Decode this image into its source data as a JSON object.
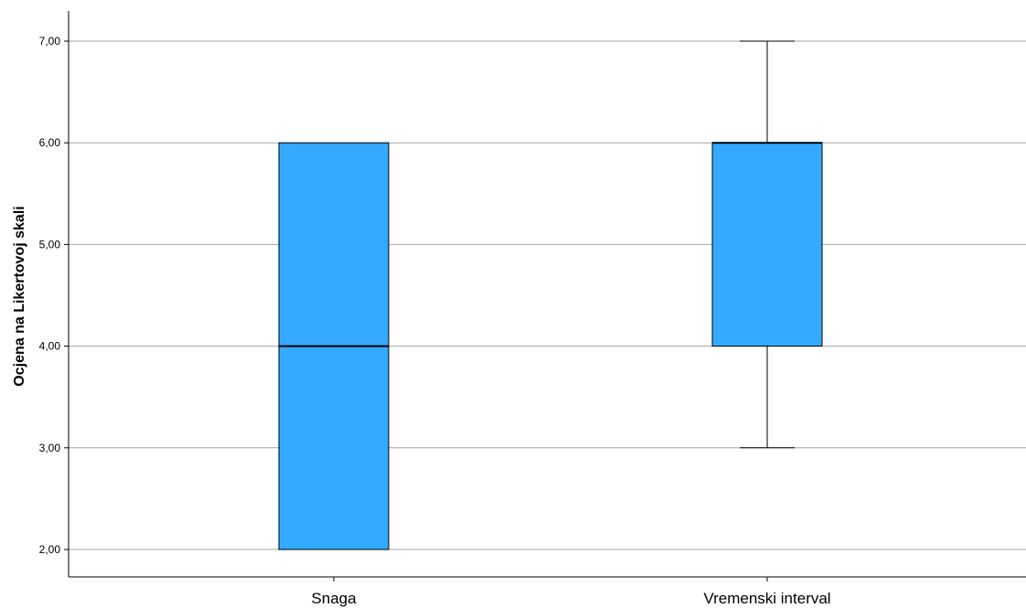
{
  "chart_data": {
    "type": "boxplot",
    "ylabel": "Ocjena na Likertovoj skali",
    "xlabel": "",
    "ylim": [
      1.75,
      7.3
    ],
    "yticks": [
      "2,00",
      "3,00",
      "4,00",
      "5,00",
      "6,00",
      "7,00"
    ],
    "ytick_values": [
      2,
      3,
      4,
      5,
      6,
      7
    ],
    "grid": true,
    "categories": [
      "Snaga",
      "Vremenski interval"
    ],
    "boxes": [
      {
        "category": "Snaga",
        "min": 2,
        "q1": 2,
        "median": 4,
        "q3": 6,
        "max": 6
      },
      {
        "category": "Vremenski interval",
        "min": 3,
        "q1": 4,
        "median": 6,
        "q3": 6,
        "max": 7
      }
    ],
    "colors": {
      "box_fill": "#33aaff",
      "box_stroke": "#000000",
      "grid": "#a6a6a6",
      "axis": "#000000"
    }
  }
}
